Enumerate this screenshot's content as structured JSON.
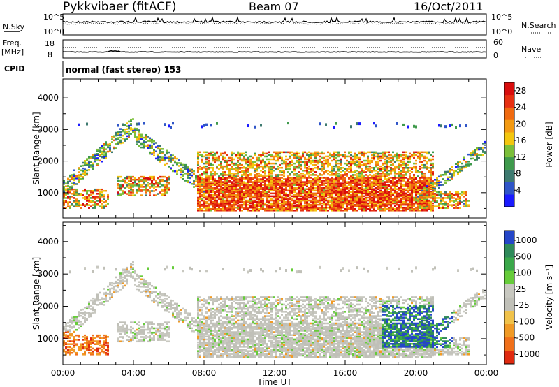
{
  "header": {
    "title": "Pykkvibaer (fitACF)",
    "beam": "Beam 07",
    "date": "16/Oct/2011"
  },
  "colors": {
    "power_scale": [
      "#1a1aff",
      "#2f55c8",
      "#3e7a70",
      "#3f9a4c",
      "#7bbf3a",
      "#f3c60e",
      "#f39a12",
      "#f06a10",
      "#e73012",
      "#d80d0d"
    ],
    "velocity_scale": [
      "#2546c8",
      "#2f8a5a",
      "#3aa84a",
      "#66cc3a",
      "#c8c8c0",
      "#c0c0b8",
      "#f0c24a",
      "#f09a25",
      "#f0701a",
      "#e02a10"
    ]
  },
  "chart_data": [
    {
      "type": "line",
      "panel": "noise",
      "left_labels": [
        "N.Sky"
      ],
      "right_labels": [
        "N.Search"
      ],
      "left_ticks": [
        "10^5",
        "10^0"
      ],
      "right_ticks": [
        "10^5",
        "10^0"
      ],
      "series": [
        {
          "name": "N.Sky",
          "style": "solid"
        },
        {
          "name": "N.Search",
          "style": "dotted"
        }
      ]
    },
    {
      "type": "line",
      "panel": "frequency",
      "left_labels": [
        "Freq.",
        "[MHz]"
      ],
      "right_labels": [
        "Nave"
      ],
      "left_ticks": [
        "18",
        "8"
      ],
      "right_ticks": [
        "60",
        "0"
      ],
      "series": [
        {
          "name": "Freq.",
          "style": "solid"
        },
        {
          "name": "Nave",
          "style": "dotted"
        }
      ]
    },
    {
      "type": "table",
      "panel": "cpid",
      "label": "CPID",
      "value": "normal (fast stereo) 153"
    },
    {
      "type": "heatmap",
      "panel": "power",
      "ylabel": "Slant Range [km]",
      "ylim": [
        200,
        4600
      ],
      "yticks": [
        "1000",
        "2000",
        "3000",
        "4000"
      ],
      "colorbar_label": "Power [dB]",
      "colorbar_ticks": [
        "4",
        "8",
        "12",
        "16",
        "20",
        "24",
        "28"
      ]
    },
    {
      "type": "heatmap",
      "panel": "velocity",
      "ylabel": "Slant Range [km]",
      "ylim": [
        200,
        4600
      ],
      "yticks": [
        "1000",
        "2000",
        "3000",
        "4000"
      ],
      "colorbar_label": "Velocity [m s⁻¹]",
      "colorbar_ticks": [
        "1000",
        "500",
        "100",
        "25",
        "-25",
        "-100",
        "-500",
        "-1000"
      ]
    }
  ],
  "xaxis": {
    "label": "Time UT",
    "ticks": [
      "00:00",
      "04:00",
      "08:00",
      "12:00",
      "16:00",
      "20:00",
      "00:00"
    ]
  }
}
